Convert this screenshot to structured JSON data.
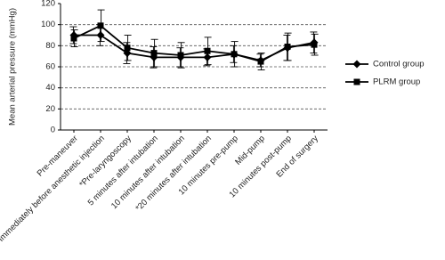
{
  "chart_data": {
    "type": "line",
    "y_label": "Mean arterial pressure (mmHg)",
    "categories": [
      "Pre-maneuver",
      "*Immediately before anesthetic injection",
      "*Pre-laryngoscopy",
      "5 minutes after intubation",
      "10 minutes after intubation",
      "*20 minutes after intubation",
      "10 minutes pre-pump",
      "Mid-pump",
      "10 minutes post-pump",
      "End of surgery"
    ],
    "series": [
      {
        "name": "Control group",
        "color": "#000000",
        "marker": "diamond",
        "values": [
          90,
          90,
          73,
          69,
          69,
          69,
          72,
          66,
          78,
          83
        ],
        "errors": [
          8,
          10,
          10,
          10,
          9,
          8,
          8,
          6,
          12,
          10
        ]
      },
      {
        "name": "PLRM group",
        "color": "#000000",
        "marker": "square",
        "values": [
          87,
          99,
          78,
          73,
          71,
          75,
          72,
          65,
          79,
          81
        ],
        "errors": [
          8,
          15,
          12,
          13,
          12,
          13,
          12,
          8,
          13,
          10
        ]
      }
    ],
    "ylim": [
      0,
      120
    ],
    "yticks": [
      0,
      20,
      40,
      60,
      80,
      100,
      120
    ],
    "grid": true,
    "legend": "right"
  }
}
